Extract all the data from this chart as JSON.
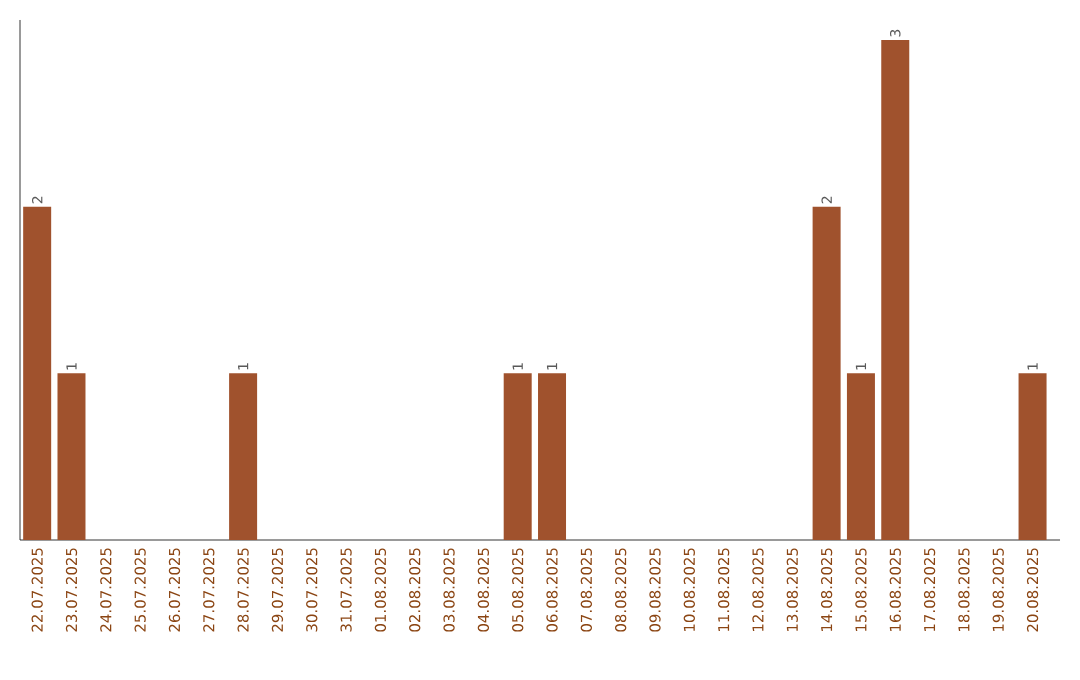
{
  "chart_data": {
    "type": "bar",
    "categories": [
      "22.07.2025",
      "23.07.2025",
      "24.07.2025",
      "25.07.2025",
      "26.07.2025",
      "27.07.2025",
      "28.07.2025",
      "29.07.2025",
      "30.07.2025",
      "31.07.2025",
      "01.08.2025",
      "02.08.2025",
      "03.08.2025",
      "04.08.2025",
      "05.08.2025",
      "06.08.2025",
      "07.08.2025",
      "08.08.2025",
      "09.08.2025",
      "10.08.2025",
      "11.08.2025",
      "12.08.2025",
      "13.08.2025",
      "14.08.2025",
      "15.08.2025",
      "16.08.2025",
      "17.08.2025",
      "18.08.2025",
      "19.08.2025",
      "20.08.2025"
    ],
    "values": [
      2,
      1,
      0,
      0,
      0,
      0,
      1,
      0,
      0,
      0,
      0,
      0,
      0,
      0,
      1,
      1,
      0,
      0,
      0,
      0,
      0,
      0,
      0,
      2,
      1,
      3,
      0,
      0,
      0,
      1
    ],
    "value_labels": [
      "2",
      "1",
      null,
      null,
      null,
      null,
      "1",
      null,
      null,
      null,
      null,
      null,
      null,
      null,
      "1",
      "1",
      null,
      null,
      null,
      null,
      null,
      null,
      null,
      "2",
      "1",
      "3",
      null,
      null,
      null,
      "1"
    ],
    "color": "#a0522d"
  }
}
